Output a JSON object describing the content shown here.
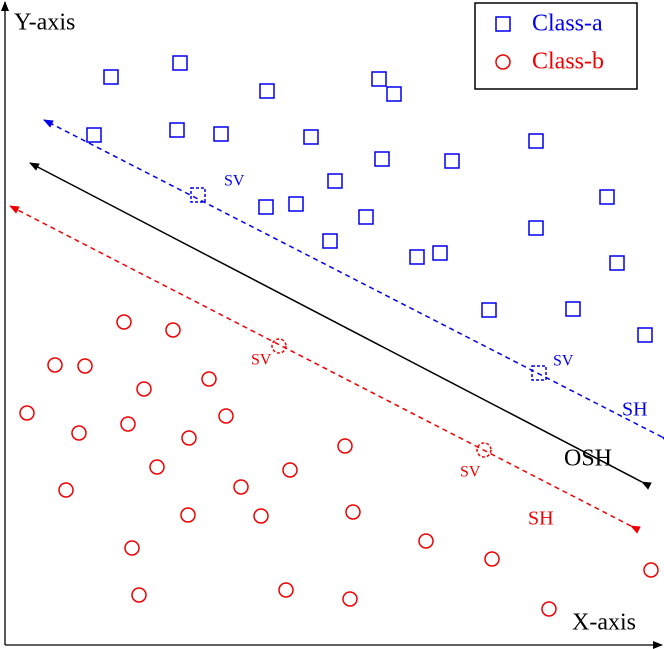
{
  "axes": {
    "y": "Y-axis",
    "x": "X-axis"
  },
  "legend": [
    "Class-a",
    "Class-b"
  ],
  "support_vector_labels": [
    "SV",
    "SV",
    "SV",
    "SV"
  ],
  "lines": {
    "upper": "SH",
    "middle": "OSH",
    "lower": "SH"
  }
}
